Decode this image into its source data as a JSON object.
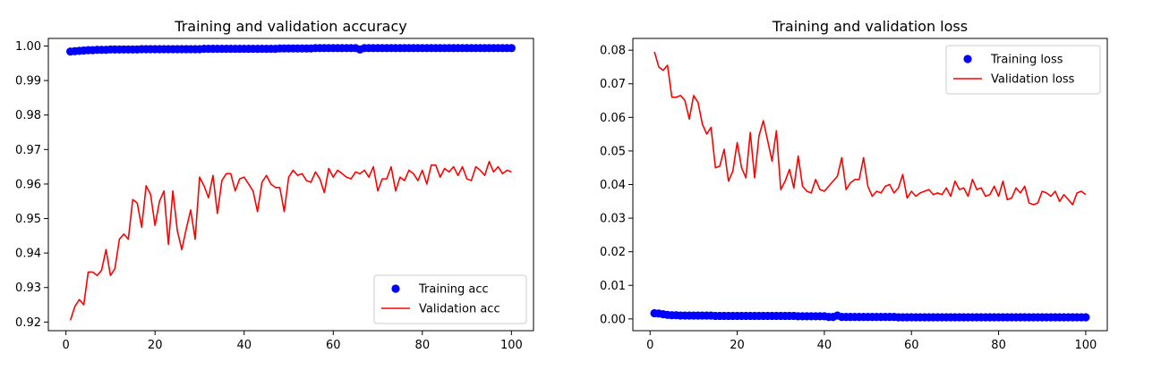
{
  "chart_data": [
    {
      "type": "line",
      "title": "Training and validation accuracy",
      "xlabel": "",
      "ylabel": "",
      "xlim": [
        -3.95,
        104.95
      ],
      "ylim": [
        0.9175,
        1.0022
      ],
      "xticks": [
        0,
        20,
        40,
        60,
        80,
        100
      ],
      "xtick_labels": [
        "0",
        "20",
        "40",
        "60",
        "80",
        "100"
      ],
      "yticks": [
        0.92,
        0.93,
        0.94,
        0.95,
        0.96,
        0.97,
        0.98,
        0.99,
        1.0
      ],
      "ytick_labels": [
        "0.92",
        "0.93",
        "0.94",
        "0.95",
        "0.96",
        "0.97",
        "0.98",
        "0.99",
        "1.00"
      ],
      "grid": false,
      "legend_position": "bottom-right",
      "series": [
        {
          "name": "Training acc",
          "style": "points",
          "color": "#0000ff",
          "x_start": 1,
          "x_step": 1,
          "values": [
            0.9984,
            0.9985,
            0.9986,
            0.9987,
            0.9988,
            0.9988,
            0.9989,
            0.9989,
            0.9989,
            0.999,
            0.999,
            0.999,
            0.999,
            0.999,
            0.999,
            0.999,
            0.9991,
            0.9991,
            0.9991,
            0.9991,
            0.9991,
            0.9991,
            0.9991,
            0.9991,
            0.9991,
            0.9991,
            0.9991,
            0.9991,
            0.9991,
            0.9991,
            0.9992,
            0.9992,
            0.9992,
            0.9992,
            0.9992,
            0.9992,
            0.9992,
            0.9992,
            0.9992,
            0.9992,
            0.9992,
            0.9992,
            0.9992,
            0.9992,
            0.9992,
            0.9992,
            0.9992,
            0.9993,
            0.9993,
            0.9993,
            0.9993,
            0.9993,
            0.9993,
            0.9993,
            0.9993,
            0.9994,
            0.9994,
            0.9994,
            0.9994,
            0.9994,
            0.9994,
            0.9994,
            0.9994,
            0.9994,
            0.9994,
            0.999,
            0.9994,
            0.9994,
            0.9994,
            0.9994,
            0.9994,
            0.9994,
            0.9994,
            0.9994,
            0.9994,
            0.9994,
            0.9994,
            0.9994,
            0.9994,
            0.9994,
            0.9994,
            0.9994,
            0.9994,
            0.9994,
            0.9994,
            0.9994,
            0.9994,
            0.9994,
            0.9994,
            0.9994,
            0.9994,
            0.9994,
            0.9994,
            0.9994,
            0.9994,
            0.9994,
            0.9994,
            0.9994,
            0.9994,
            0.9994
          ]
        },
        {
          "name": "Validation acc",
          "style": "line",
          "color": "#ff0000",
          "x_start": 1,
          "x_step": 1,
          "values": [
            0.9205,
            0.9245,
            0.9265,
            0.925,
            0.9345,
            0.9345,
            0.9335,
            0.935,
            0.941,
            0.9335,
            0.9355,
            0.944,
            0.9455,
            0.944,
            0.9555,
            0.9545,
            0.9475,
            0.9595,
            0.957,
            0.948,
            0.955,
            0.958,
            0.9425,
            0.958,
            0.9465,
            0.941,
            0.947,
            0.9525,
            0.944,
            0.962,
            0.9595,
            0.956,
            0.9625,
            0.9515,
            0.961,
            0.963,
            0.963,
            0.958,
            0.9615,
            0.962,
            0.96,
            0.958,
            0.952,
            0.9605,
            0.9625,
            0.96,
            0.959,
            0.959,
            0.952,
            0.962,
            0.964,
            0.9625,
            0.963,
            0.961,
            0.9605,
            0.9635,
            0.9615,
            0.9575,
            0.9645,
            0.962,
            0.964,
            0.963,
            0.962,
            0.9615,
            0.9635,
            0.963,
            0.964,
            0.962,
            0.965,
            0.958,
            0.9615,
            0.9615,
            0.965,
            0.958,
            0.962,
            0.961,
            0.964,
            0.963,
            0.961,
            0.964,
            0.96,
            0.9655,
            0.9655,
            0.962,
            0.9645,
            0.9635,
            0.965,
            0.9625,
            0.965,
            0.9615,
            0.961,
            0.965,
            0.964,
            0.9625,
            0.9665,
            0.9635,
            0.965,
            0.963,
            0.964,
            0.9635
          ]
        }
      ]
    },
    {
      "type": "line",
      "title": "Training and validation loss",
      "xlabel": "",
      "ylabel": "",
      "xlim": [
        -3.95,
        104.95
      ],
      "ylim": [
        -0.0035,
        0.0835
      ],
      "xticks": [
        0,
        20,
        40,
        60,
        80,
        100
      ],
      "xtick_labels": [
        "0",
        "20",
        "40",
        "60",
        "80",
        "100"
      ],
      "yticks": [
        0.0,
        0.01,
        0.02,
        0.03,
        0.04,
        0.05,
        0.06,
        0.07,
        0.08
      ],
      "ytick_labels": [
        "0.00",
        "0.01",
        "0.02",
        "0.03",
        "0.04",
        "0.05",
        "0.06",
        "0.07",
        "0.08"
      ],
      "grid": false,
      "legend_position": "top-right",
      "series": [
        {
          "name": "Training loss",
          "style": "points",
          "color": "#0000ff",
          "x_start": 1,
          "x_step": 1,
          "values": [
            0.0017,
            0.0016,
            0.0014,
            0.0012,
            0.0011,
            0.0011,
            0.001,
            0.001,
            0.001,
            0.001,
            0.001,
            0.001,
            0.001,
            0.001,
            0.0009,
            0.0009,
            0.0009,
            0.0009,
            0.0009,
            0.0009,
            0.0009,
            0.0009,
            0.0009,
            0.0009,
            0.0009,
            0.0009,
            0.0009,
            0.0009,
            0.0009,
            0.0009,
            0.0009,
            0.0009,
            0.0009,
            0.0008,
            0.0008,
            0.0008,
            0.0008,
            0.0008,
            0.0008,
            0.0008,
            0.0006,
            0.0006,
            0.001,
            0.0006,
            0.0006,
            0.0006,
            0.0006,
            0.0006,
            0.0006,
            0.0006,
            0.0006,
            0.0006,
            0.0006,
            0.0006,
            0.0006,
            0.0006,
            0.0005,
            0.0005,
            0.0005,
            0.0005,
            0.0005,
            0.0005,
            0.0005,
            0.0005,
            0.0005,
            0.0005,
            0.0005,
            0.0005,
            0.0005,
            0.0005,
            0.0005,
            0.0005,
            0.0005,
            0.0005,
            0.0005,
            0.0005,
            0.0005,
            0.0005,
            0.0005,
            0.0005,
            0.0005,
            0.0005,
            0.0005,
            0.0005,
            0.0005,
            0.0005,
            0.0005,
            0.0005,
            0.0005,
            0.0005,
            0.0005,
            0.0005,
            0.0005,
            0.0005,
            0.0005,
            0.0005,
            0.0005,
            0.0005,
            0.0005,
            0.0005
          ]
        },
        {
          "name": "Validation loss",
          "style": "line",
          "color": "#ff0000",
          "x_start": 1,
          "x_step": 1,
          "values": [
            0.0795,
            0.075,
            0.074,
            0.0755,
            0.066,
            0.066,
            0.0665,
            0.065,
            0.0595,
            0.0665,
            0.0645,
            0.058,
            0.055,
            0.057,
            0.045,
            0.0455,
            0.0505,
            0.041,
            0.044,
            0.0525,
            0.045,
            0.042,
            0.0555,
            0.042,
            0.0545,
            0.059,
            0.053,
            0.047,
            0.056,
            0.0385,
            0.041,
            0.0445,
            0.039,
            0.0485,
            0.0395,
            0.038,
            0.0375,
            0.0415,
            0.0385,
            0.038,
            0.0395,
            0.041,
            0.0425,
            0.048,
            0.0385,
            0.0405,
            0.0415,
            0.0415,
            0.048,
            0.0395,
            0.0365,
            0.038,
            0.0375,
            0.0395,
            0.04,
            0.0375,
            0.039,
            0.043,
            0.036,
            0.038,
            0.0365,
            0.0375,
            0.038,
            0.0385,
            0.037,
            0.0375,
            0.037,
            0.039,
            0.0365,
            0.041,
            0.0385,
            0.039,
            0.0365,
            0.0415,
            0.0385,
            0.039,
            0.0365,
            0.037,
            0.0395,
            0.0365,
            0.041,
            0.0355,
            0.036,
            0.039,
            0.0375,
            0.0395,
            0.0345,
            0.034,
            0.0345,
            0.038,
            0.0375,
            0.0365,
            0.038,
            0.035,
            0.037,
            0.0355,
            0.034,
            0.0375,
            0.038,
            0.037
          ]
        }
      ]
    }
  ]
}
